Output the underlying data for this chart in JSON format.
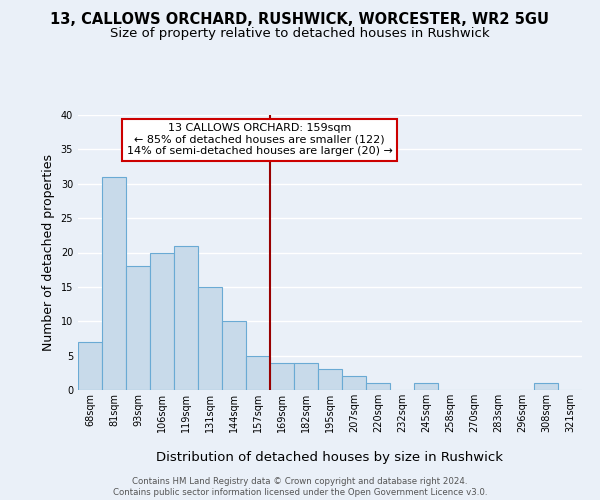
{
  "title": "13, CALLOWS ORCHARD, RUSHWICK, WORCESTER, WR2 5GU",
  "subtitle": "Size of property relative to detached houses in Rushwick",
  "xlabel": "Distribution of detached houses by size in Rushwick",
  "ylabel": "Number of detached properties",
  "bin_labels": [
    "68sqm",
    "81sqm",
    "93sqm",
    "106sqm",
    "119sqm",
    "131sqm",
    "144sqm",
    "157sqm",
    "169sqm",
    "182sqm",
    "195sqm",
    "207sqm",
    "220sqm",
    "232sqm",
    "245sqm",
    "258sqm",
    "270sqm",
    "283sqm",
    "296sqm",
    "308sqm",
    "321sqm"
  ],
  "bar_values": [
    7,
    31,
    18,
    20,
    21,
    15,
    10,
    5,
    4,
    4,
    3,
    2,
    1,
    0,
    1,
    0,
    0,
    0,
    0,
    1,
    0
  ],
  "bar_color": "#c8daea",
  "bar_edge_color": "#6aaad4",
  "vline_x_index": 7,
  "vline_color": "#990000",
  "annotation_title": "13 CALLOWS ORCHARD: 159sqm",
  "annotation_line2": "← 85% of detached houses are smaller (122)",
  "annotation_line3": "14% of semi-detached houses are larger (20) →",
  "annotation_box_color": "#cc0000",
  "annotation_box_fill": "#ffffff",
  "ylim": [
    0,
    40
  ],
  "yticks": [
    0,
    5,
    10,
    15,
    20,
    25,
    30,
    35,
    40
  ],
  "footnote1": "Contains HM Land Registry data © Crown copyright and database right 2024.",
  "footnote2": "Contains public sector information licensed under the Open Government Licence v3.0.",
  "bg_color": "#eaf0f8",
  "plot_bg_color": "#eaf0f8",
  "grid_color": "#ffffff",
  "title_fontsize": 10.5,
  "subtitle_fontsize": 9.5,
  "axis_label_fontsize": 9,
  "tick_fontsize": 7
}
